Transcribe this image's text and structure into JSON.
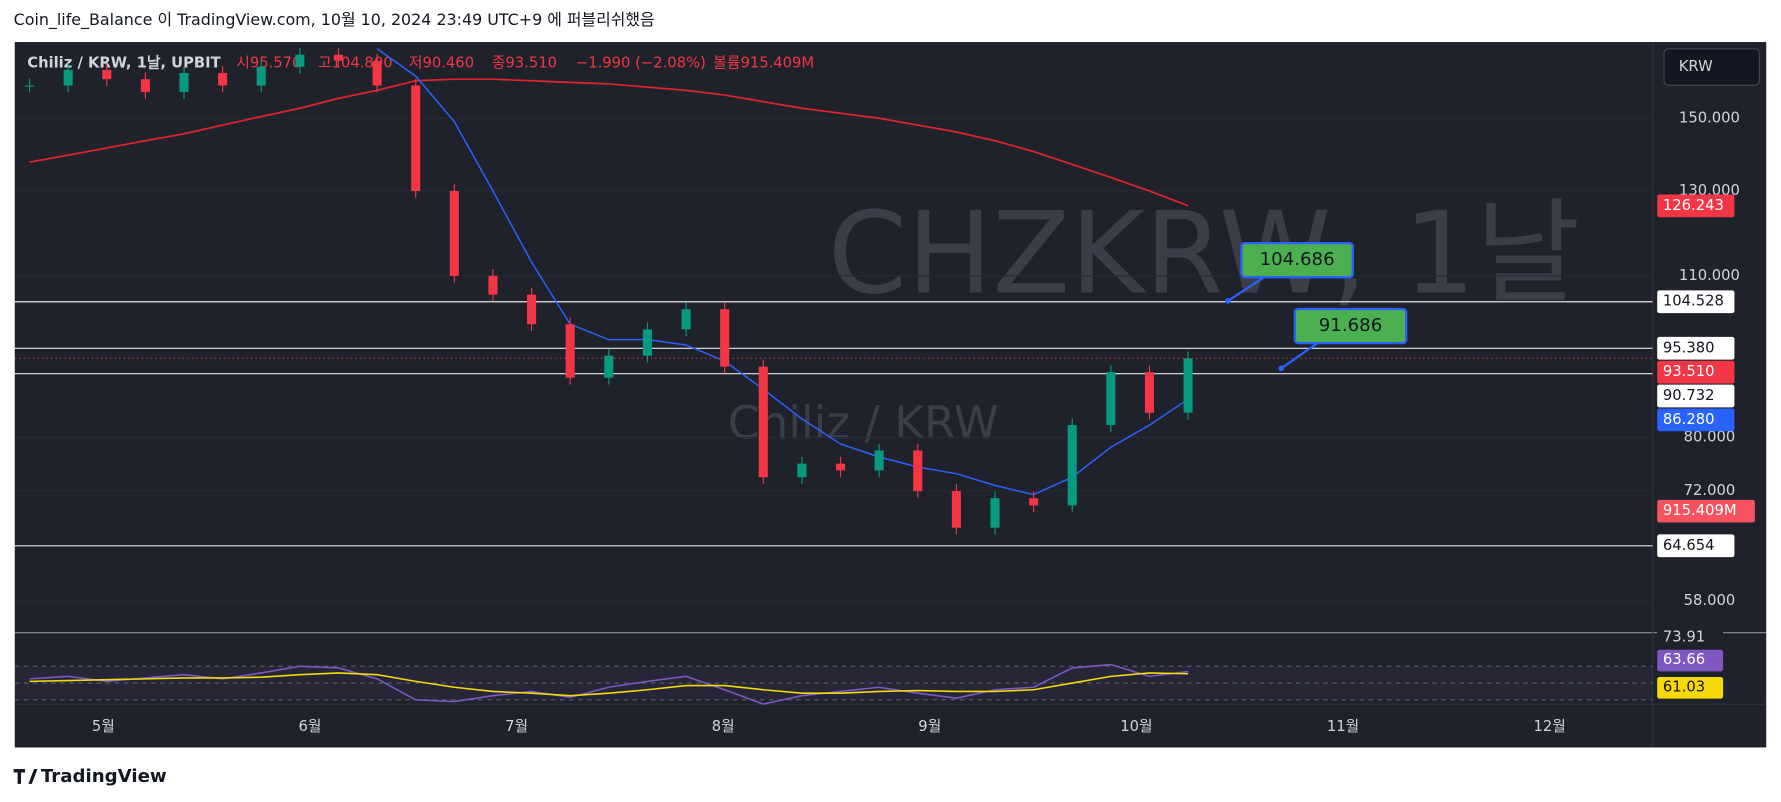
{
  "header": {
    "text": "Coin_life_Balance 이 TradingView.com, 10월 10, 2024 23:49 UTC+9 에 퍼블리쉬했음"
  },
  "legend": {
    "symbol": "Chiliz / KRW, 1날, UPBIT",
    "open": "시95.570",
    "high": "고104.800",
    "low": "저90.460",
    "close": "종93.510",
    "change": "−1.990 (−2.08%)",
    "volume": "볼륨915.409M"
  },
  "watermark": {
    "symbol": "CHZKRW, 1날",
    "name": "Chiliz / KRW"
  },
  "currency_button": "KRW",
  "footer": "TradingView",
  "chart_data": {
    "type": "candlestick",
    "log_scale": true,
    "ylim": [
      54.6,
      174.3
    ],
    "yticks": [
      {
        "value": 150,
        "label": "150.000"
      },
      {
        "value": 130,
        "label": "130.000"
      },
      {
        "value": 110,
        "label": "110.000"
      },
      {
        "value": 80,
        "label": "80.000"
      },
      {
        "value": 72,
        "label": "72.000"
      },
      {
        "value": 58,
        "label": "58.000"
      }
    ],
    "categories": [
      "5월",
      "6월",
      "7월",
      "8월",
      "9월",
      "10월",
      "11월",
      "12월"
    ],
    "up_color": "#089981",
    "down_color": "#f23645",
    "closes": [
      160,
      165,
      162,
      158,
      164,
      160,
      166,
      170,
      168,
      160,
      130,
      110,
      106,
      100,
      90,
      94,
      99,
      103,
      92,
      74,
      76,
      75,
      78,
      72,
      67,
      71,
      70,
      82,
      91,
      84,
      93.51
    ],
    "ma_long": {
      "color": "#e0242c",
      "values": [
        137.6,
        139.5,
        141.5,
        143.5,
        145.5,
        148,
        150.5,
        153,
        156,
        158.5,
        161.5,
        162,
        162,
        161.5,
        161,
        160.5,
        159.5,
        158.5,
        157,
        155,
        153,
        151.5,
        150,
        148,
        146,
        143.5,
        140.5,
        137,
        133.5,
        130,
        126.243
      ]
    },
    "ma_short": {
      "color": "#2962ff",
      "values": [
        null,
        null,
        null,
        null,
        null,
        null,
        null,
        null,
        null,
        172,
        163,
        149,
        130,
        113,
        100,
        97,
        97,
        96,
        93,
        88,
        83,
        79,
        77,
        75.5,
        74.5,
        72.8,
        71.5,
        74,
        78.5,
        82,
        86.28
      ]
    },
    "levels": [
      {
        "value": 104.528,
        "label": "104.528"
      },
      {
        "value": 95.38,
        "label": "95.380"
      },
      {
        "value": 90.732,
        "label": "90.732"
      },
      {
        "value": 64.654,
        "label": "64.654"
      }
    ],
    "price_labels": [
      {
        "value": 126.243,
        "label": "126.243",
        "color": "#f23645"
      },
      {
        "value": 93.51,
        "label": "93.510",
        "color": "#f23645"
      },
      {
        "value": 86.28,
        "label": "86.280",
        "color": "#2962ff"
      }
    ],
    "volume_label": {
      "label": "915.409M",
      "color": "#f7525f"
    },
    "callouts": [
      {
        "value": 104.686,
        "label": "104.686"
      },
      {
        "value": 91.686,
        "label": "91.686"
      }
    ],
    "rsi": {
      "ylim": [
        24.7,
        105.8
      ],
      "levels": [
        30,
        50,
        70
      ],
      "color": "#7e57c2",
      "ma_color": "#f5d90a",
      "values": [
        55,
        58,
        52,
        56,
        60,
        55,
        62,
        70,
        68,
        55,
        30,
        28,
        35,
        40,
        33,
        45,
        52,
        58,
        42,
        25,
        35,
        40,
        45,
        38,
        32,
        42,
        45,
        68,
        72,
        58,
        63.66
      ],
      "ma": [
        52,
        53,
        54,
        55,
        56,
        56,
        57,
        60,
        62,
        60,
        52,
        45,
        40,
        38,
        35,
        38,
        42,
        47,
        47,
        42,
        38,
        38,
        40,
        41,
        40,
        40,
        42,
        50,
        58,
        62,
        61.03
      ],
      "labels": [
        {
          "value": 73.91,
          "label": "73.91"
        },
        {
          "value": 63.66,
          "label": "63.66"
        },
        {
          "value": 61.03,
          "label": "61.03"
        }
      ]
    }
  }
}
